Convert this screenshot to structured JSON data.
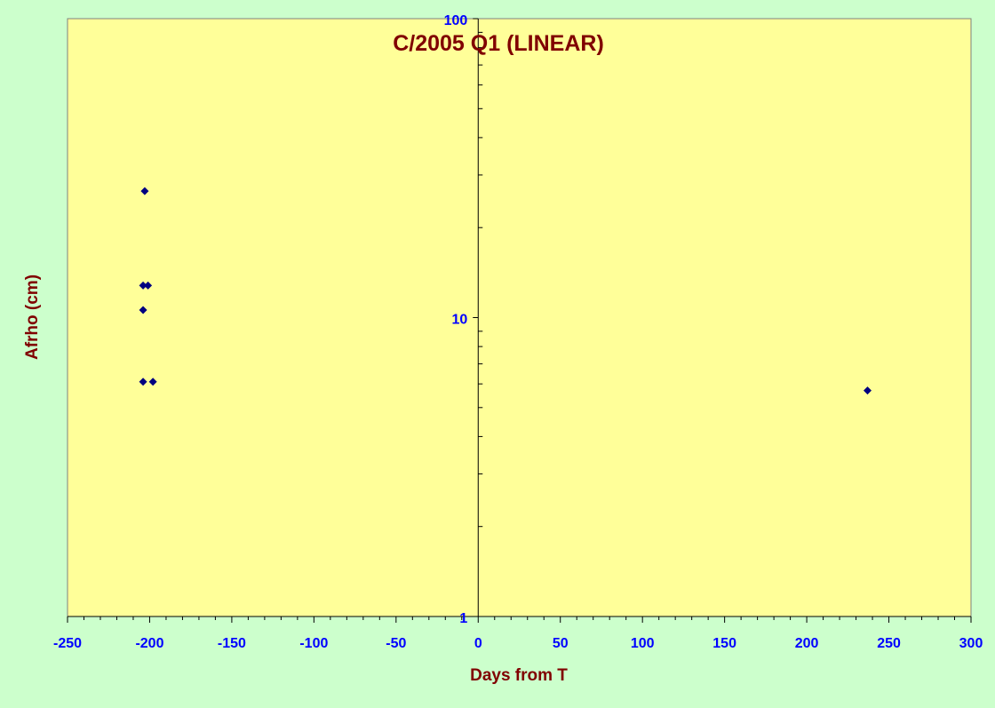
{
  "colors": {
    "page_background": "#ccffcc",
    "plot_background": "#ffff99",
    "title": "#800000",
    "axis_label": "#800000",
    "tick_label": "#0000ff",
    "marker": "#000080",
    "axis_line": "#000000"
  },
  "chart_data": {
    "type": "scatter",
    "title": "C/2005 Q1 (LINEAR)",
    "xlabel": "Days from T",
    "ylabel": "Afrho (cm)",
    "xlim": [
      -250,
      300
    ],
    "ylim": [
      1,
      100
    ],
    "y_scale": "log",
    "x_ticks": [
      "-250",
      "-200",
      "-150",
      "-100",
      "-50",
      "0",
      "50",
      "100",
      "150",
      "200",
      "250",
      "300"
    ],
    "y_ticks": [
      "1",
      "10",
      "100"
    ],
    "grid": false,
    "legend": "none",
    "marker": "diamond",
    "series": [
      {
        "points": [
          {
            "x": -203,
            "y": 26.5
          },
          {
            "x": -204,
            "y": 12.8
          },
          {
            "x": -201,
            "y": 12.8
          },
          {
            "x": -204,
            "y": 10.6
          },
          {
            "x": -204,
            "y": 6.1
          },
          {
            "x": -198,
            "y": 6.1
          },
          {
            "x": 237,
            "y": 5.7
          }
        ]
      }
    ]
  }
}
